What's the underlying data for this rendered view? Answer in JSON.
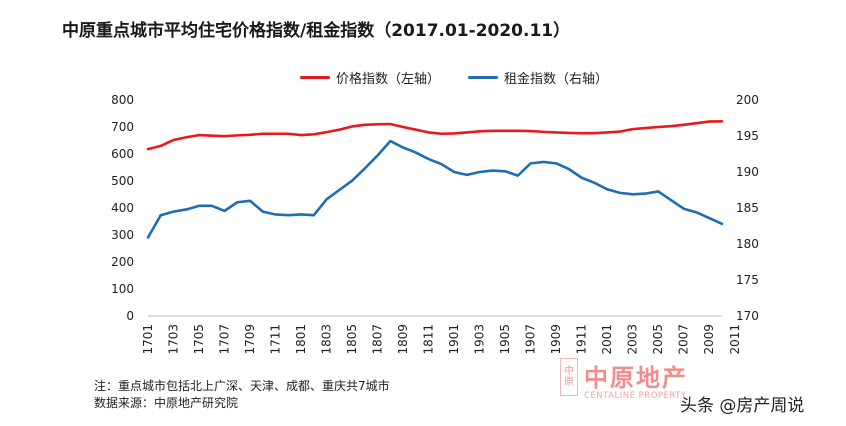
{
  "page": {
    "title": "中原重点城市平均住宅价格指数/租金指数（2017.01-2020.11）"
  },
  "legend": {
    "price_label": "价格指数（左轴）",
    "rent_label": "租金指数（右轴）"
  },
  "colors": {
    "price": "#e8191d",
    "rent": "#1f6db3"
  },
  "notes": {
    "note1": "注：重点城市包括北上广深、天津、成都、重庆共7城市",
    "note2": "数据来源：中原地产研究院"
  },
  "watermark": {
    "seal": "中原",
    "cn": "中原地产",
    "en": "CENTALINE PROPERTY"
  },
  "credit": "头条 @房产周说",
  "chart_data": {
    "type": "line",
    "title": "中原重点城市平均住宅价格指数/租金指数（2017.01-2020.11）",
    "x_tick_labels": [
      "1701",
      "1703",
      "1705",
      "1707",
      "1709",
      "1711",
      "1801",
      "1803",
      "1805",
      "1807",
      "1809",
      "1811",
      "1901",
      "1903",
      "1905",
      "1907",
      "1909",
      "1911",
      "2001",
      "2003",
      "2005",
      "2007",
      "2009",
      "2011"
    ],
    "y_left": {
      "range": [
        0,
        800
      ],
      "ticks": [
        0,
        100,
        200,
        300,
        400,
        500,
        600,
        700,
        800
      ]
    },
    "y_right": {
      "range": [
        170,
        200
      ],
      "ticks": [
        170,
        175,
        180,
        185,
        190,
        195,
        200
      ]
    },
    "series": [
      {
        "name": "价格指数（左轴）",
        "axis": "left",
        "values": [
          618,
          630,
          652,
          662,
          670,
          668,
          666,
          669,
          671,
          675,
          675,
          675,
          670,
          673,
          681,
          690,
          702,
          708,
          710,
          711,
          700,
          690,
          680,
          675,
          676,
          680,
          684,
          686,
          686,
          686,
          685,
          682,
          680,
          678,
          677,
          677,
          680,
          683,
          692,
          696,
          700,
          703,
          708,
          714,
          720,
          721
        ]
      },
      {
        "name": "租金指数（右轴）",
        "axis": "right",
        "values": [
          180.9,
          184.0,
          184.5,
          184.8,
          185.3,
          185.3,
          184.6,
          185.8,
          186.0,
          184.5,
          184.1,
          184.0,
          184.1,
          184.0,
          186.2,
          187.5,
          188.8,
          190.5,
          192.3,
          194.3,
          193.4,
          192.7,
          191.8,
          191.1,
          190.0,
          189.6,
          190.0,
          190.2,
          190.1,
          189.5,
          191.2,
          191.4,
          191.2,
          190.4,
          189.2,
          188.5,
          187.6,
          187.1,
          186.9,
          187.0,
          187.3,
          186.1,
          184.9,
          184.4,
          183.6,
          182.8
        ]
      }
    ],
    "grid": false,
    "legend_position": "top"
  }
}
